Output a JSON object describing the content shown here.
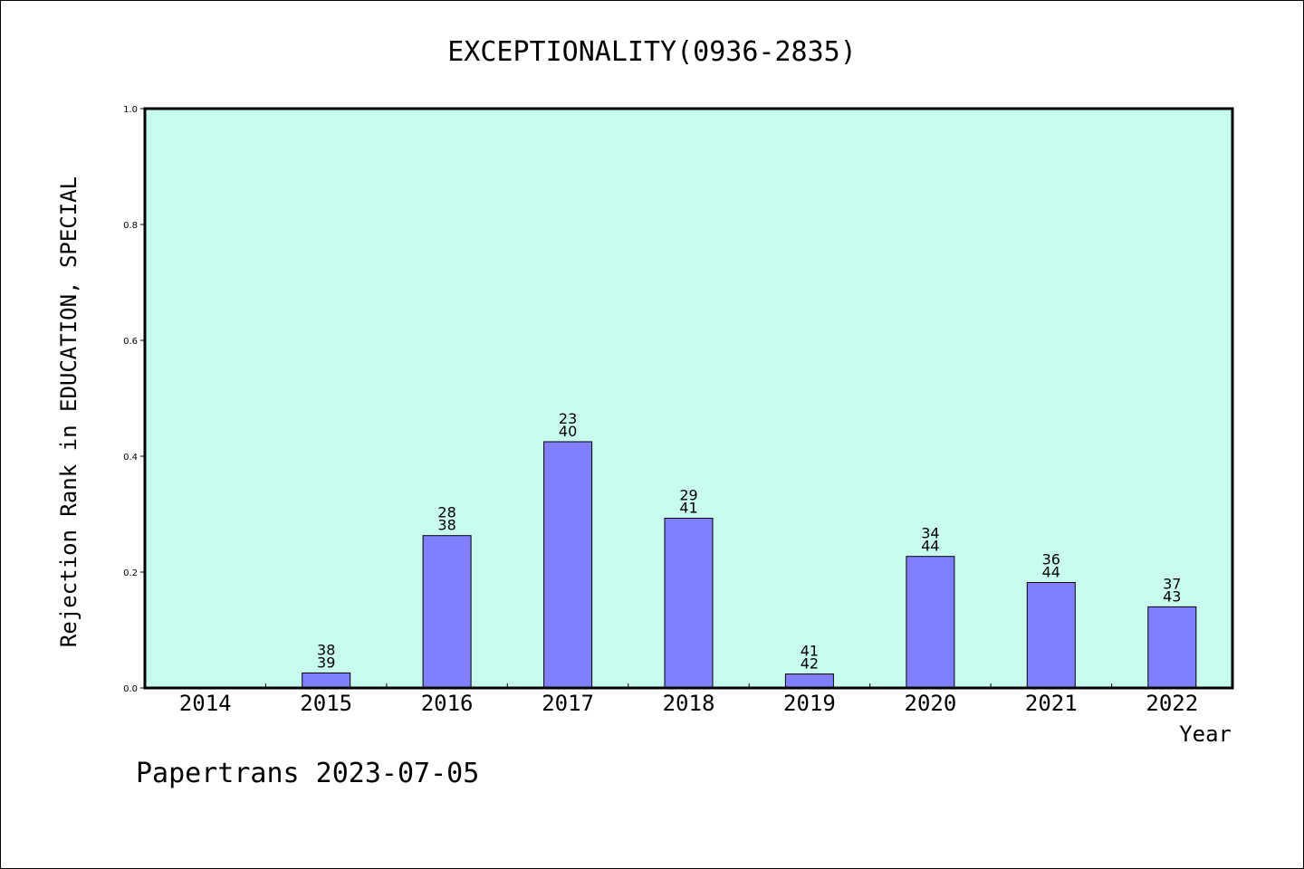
{
  "footer": "Papertrans 2023-07-05",
  "chart_data": {
    "type": "bar",
    "title": "EXCEPTIONALITY(0936-2835)",
    "xlabel": "Year",
    "ylabel": "Rejection Rank in EDUCATION, SPECIAL",
    "ylim": [
      0,
      1.0
    ],
    "yticks": [
      "0.0",
      "0.2",
      "0.4",
      "0.6",
      "0.8",
      "1.0"
    ],
    "categories": [
      "2014",
      "2015",
      "2016",
      "2017",
      "2018",
      "2019",
      "2020",
      "2021",
      "2022"
    ],
    "values": [
      0,
      0.026,
      0.263,
      0.425,
      0.293,
      0.024,
      0.227,
      0.182,
      0.14
    ],
    "labels": [
      null,
      [
        "38",
        "39"
      ],
      [
        "28",
        "38"
      ],
      [
        "23",
        "40"
      ],
      [
        "29",
        "41"
      ],
      [
        "41",
        "42"
      ],
      [
        "34",
        "44"
      ],
      [
        "36",
        "44"
      ],
      [
        "37",
        "43"
      ]
    ],
    "grid": false,
    "colors": {
      "plot_background": "#c8fcee",
      "bar": "#8080ff",
      "bar_stroke": "#000000"
    }
  }
}
